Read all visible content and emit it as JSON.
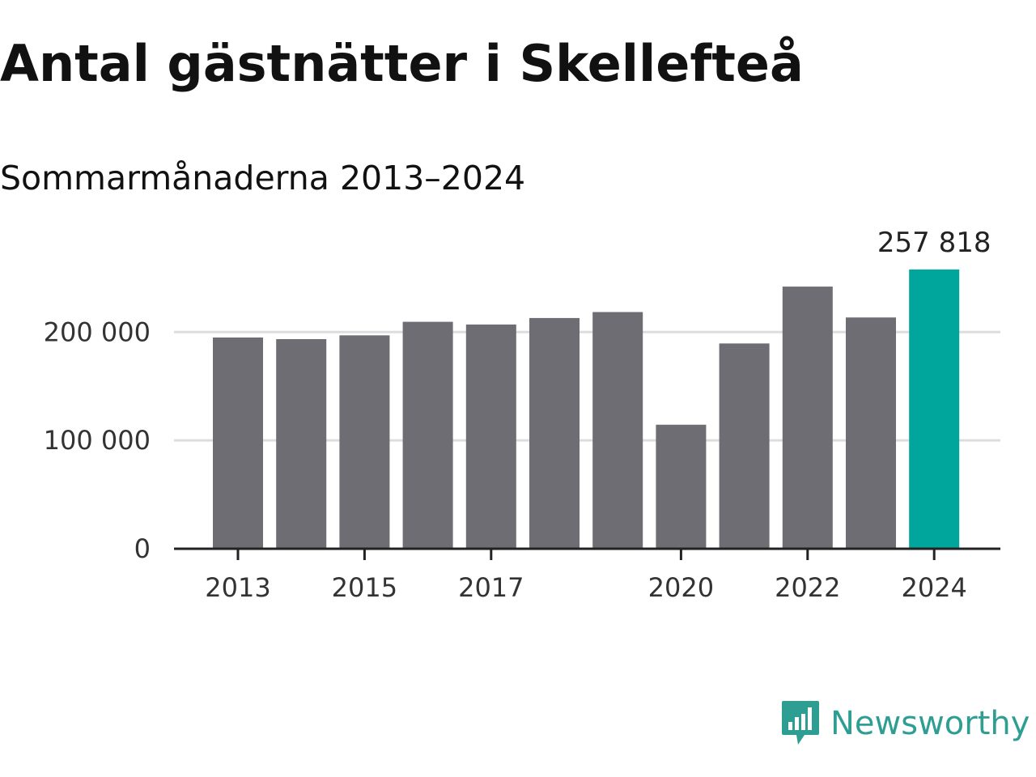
{
  "title": "Antal gästnätter i Skellefteå",
  "subtitle": "Sommarmånaderna 2013–2024",
  "brand": {
    "name": "Newsworthy",
    "icon": "newsworthy-logo-icon",
    "color": "#2e9e93"
  },
  "colors": {
    "bar": "#6e6d73",
    "highlight": "#00a59b",
    "grid": "#dddddd",
    "axis": "#222222"
  },
  "chart_data": {
    "type": "bar",
    "categories": [
      "2013",
      "2014",
      "2015",
      "2016",
      "2017",
      "2018",
      "2019",
      "2020",
      "2021",
      "2022",
      "2023",
      "2024"
    ],
    "values": [
      195000,
      193500,
      197000,
      209500,
      207000,
      213000,
      218500,
      114500,
      189500,
      242000,
      213500,
      257818
    ],
    "highlight_index": 11,
    "data_labels": [
      {
        "index": 11,
        "text": "257 818"
      }
    ],
    "x_tick_labels": [
      {
        "index": 0,
        "text": "2013"
      },
      {
        "index": 2,
        "text": "2015"
      },
      {
        "index": 4,
        "text": "2017"
      },
      {
        "index": 7,
        "text": "2020"
      },
      {
        "index": 9,
        "text": "2022"
      },
      {
        "index": 11,
        "text": "2024"
      }
    ],
    "y_ticks": [
      {
        "value": 0,
        "text": "0"
      },
      {
        "value": 100000,
        "text": "100 000"
      },
      {
        "value": 200000,
        "text": "200 000"
      }
    ],
    "ylim": [
      0,
      260000
    ],
    "grid": true,
    "xlabel": "",
    "ylabel": ""
  }
}
